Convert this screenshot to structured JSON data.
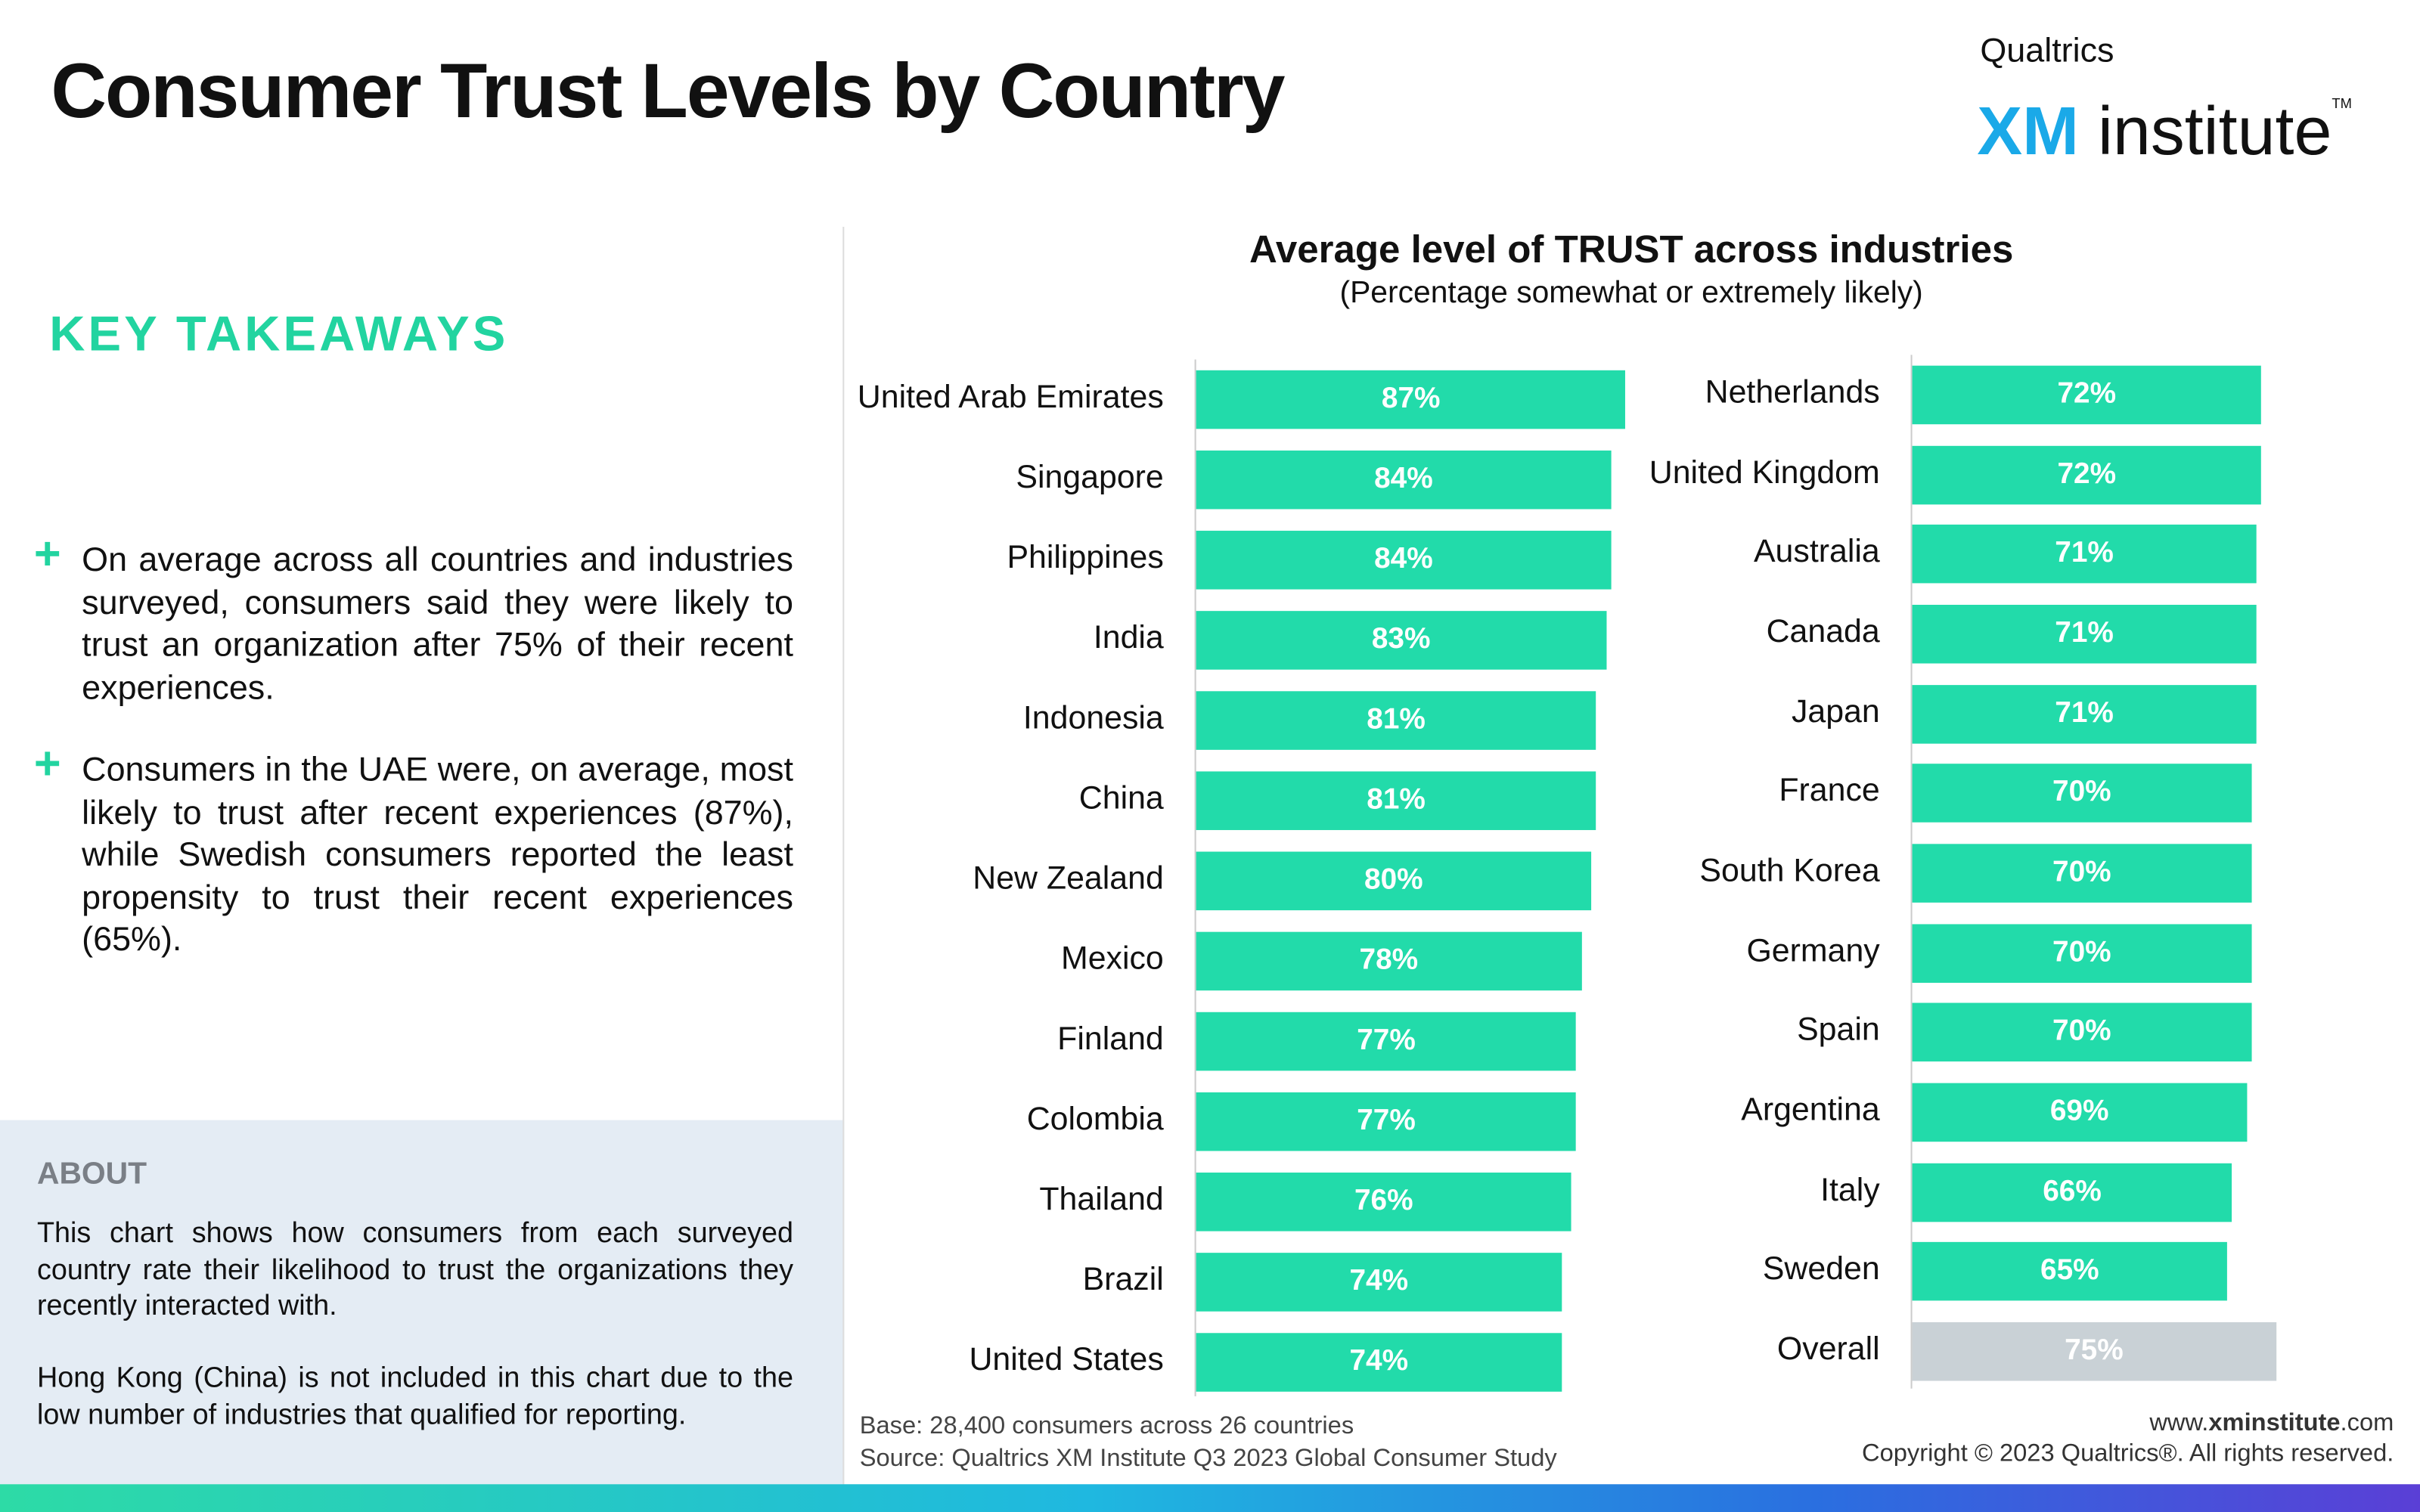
{
  "header": {
    "title": "Consumer Trust Levels by Country",
    "logo_top": "Qualtrics",
    "logo_xm": "XM",
    "logo_institute": "institute",
    "logo_tm": "TM"
  },
  "takeaways": {
    "heading": "KEY TAKEAWAYS",
    "bullet": "+",
    "items": [
      "On average across all countries and industries surveyed, consumers said they were likely to trust an organization after 75% of their recent experiences.",
      "Consumers in the UAE were, on average, most likely to trust after recent experiences (87%), while Swedish consumers reported the least propensity to trust their recent experiences (65%)."
    ]
  },
  "about": {
    "heading": "ABOUT",
    "paragraphs": [
      "This chart shows how consumers from each surveyed country rate their likelihood to trust the organizations they recently interacted with.",
      "Hong Kong (China) is not included in this chart due to the low number of industries that qualified for reporting."
    ]
  },
  "chart_data": [
    {
      "type": "bar",
      "orientation": "horizontal",
      "title": "Average level of TRUST across industries",
      "subtitle": "(Percentage somewhat or extremely likely)",
      "categories": [
        "United Arab Emirates",
        "Singapore",
        "Philippines",
        "India",
        "Indonesia",
        "China",
        "New Zealand",
        "Mexico",
        "Finland",
        "Colombia",
        "Thailand",
        "Brazil",
        "United States"
      ],
      "values": [
        87,
        84,
        84,
        83,
        81,
        81,
        80,
        78,
        77,
        77,
        76,
        74,
        74
      ],
      "value_labels": [
        "87%",
        "84%",
        "84%",
        "83%",
        "81%",
        "81%",
        "80%",
        "78%",
        "77%",
        "77%",
        "76%",
        "74%",
        "74%"
      ],
      "colors": [
        "#22dbaa",
        "#22dbaa",
        "#22dbaa",
        "#22dbaa",
        "#22dbaa",
        "#22dbaa",
        "#22dbaa",
        "#22dbaa",
        "#22dbaa",
        "#22dbaa",
        "#22dbaa",
        "#22dbaa",
        "#22dbaa"
      ],
      "xlim": [
        0,
        100
      ]
    },
    {
      "type": "bar",
      "orientation": "horizontal",
      "categories": [
        "Netherlands",
        "United Kingdom",
        "Australia",
        "Canada",
        "Japan",
        "France",
        "South Korea",
        "Germany",
        "Spain",
        "Argentina",
        "Italy",
        "Sweden",
        "Overall"
      ],
      "values": [
        72,
        72,
        71,
        71,
        71,
        70,
        70,
        70,
        70,
        69,
        66,
        65,
        75
      ],
      "value_labels": [
        "72%",
        "72%",
        "71%",
        "71%",
        "71%",
        "70%",
        "70%",
        "70%",
        "70%",
        "69%",
        "66%",
        "65%",
        "75%"
      ],
      "colors": [
        "#22dbaa",
        "#22dbaa",
        "#22dbaa",
        "#22dbaa",
        "#22dbaa",
        "#22dbaa",
        "#22dbaa",
        "#22dbaa",
        "#22dbaa",
        "#22dbaa",
        "#22dbaa",
        "#22dbaa",
        "#c9d1d6"
      ],
      "xlim": [
        0,
        100
      ]
    }
  ],
  "footer": {
    "base": "Base: 28,400 consumers across 26 countries",
    "source": "Source: Qualtrics XM Institute Q3 2023 Global Consumer Study",
    "website": [
      "www.",
      "xminstitute",
      ".com"
    ],
    "copyright": "Copyright © 2023 Qualtrics®. All rights reserved."
  }
}
